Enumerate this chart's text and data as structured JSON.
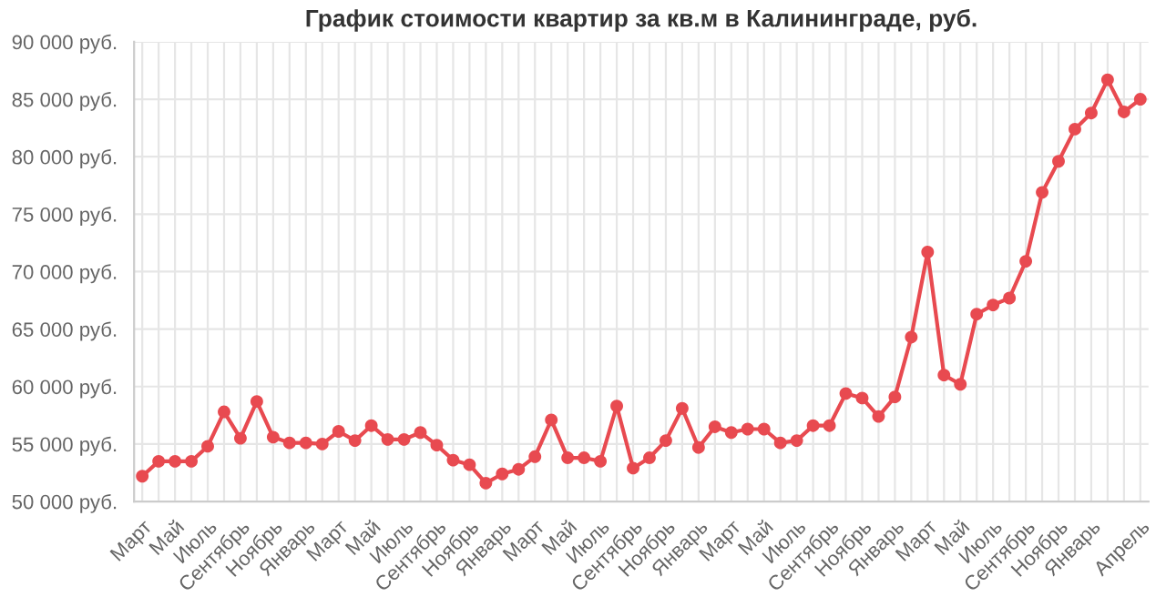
{
  "chart_data": {
    "type": "line",
    "title": "График стоимости квартир за кв.м в Калининграде, руб.",
    "categories": [
      "Март",
      null,
      "Май",
      null,
      "Июль",
      null,
      "Сентябрь",
      null,
      "Ноябрь",
      null,
      "Январь",
      null,
      "Март",
      null,
      "Май",
      null,
      "Июль",
      null,
      "Сентябрь",
      null,
      "Ноябрь",
      null,
      "Январь",
      null,
      "Март",
      null,
      "Май",
      null,
      "Июль",
      null,
      "Сентябрь",
      null,
      "Ноябрь",
      null,
      "Январь",
      null,
      "Март",
      null,
      "Май",
      null,
      "Июль",
      null,
      "Сентябрь",
      null,
      "Ноябрь",
      null,
      "Январь",
      null,
      "Март",
      null,
      "Май",
      null,
      "Июль",
      null,
      "Сентябрь",
      null,
      "Ноябрь",
      null,
      "Январь",
      null,
      null,
      "Апрель"
    ],
    "series": [
      {
        "color": "#e84a50",
        "values": [
          52200,
          53500,
          53500,
          53500,
          54800,
          57800,
          55500,
          58700,
          55600,
          55100,
          55100,
          55000,
          56100,
          55300,
          56600,
          55400,
          55400,
          56000,
          54900,
          53600,
          53200,
          51600,
          52400,
          52800,
          53900,
          57100,
          53800,
          53800,
          53500,
          58300,
          52900,
          53800,
          55300,
          58100,
          54700,
          56500,
          56000,
          56300,
          56300,
          55100,
          55300,
          56600,
          56600,
          59400,
          59000,
          57400,
          59100,
          64300,
          71700,
          61000,
          60200,
          66300,
          67100,
          67700,
          70900,
          76900,
          79600,
          82400,
          83800,
          86700,
          83900,
          85000
        ]
      }
    ],
    "ylim": [
      50000,
      90000
    ],
    "yticks": [
      {
        "value": 50000,
        "label": "50 000 руб."
      },
      {
        "value": 55000,
        "label": "55 000 руб."
      },
      {
        "value": 60000,
        "label": "60 000 руб."
      },
      {
        "value": 65000,
        "label": "65 000 руб."
      },
      {
        "value": 70000,
        "label": "70 000 руб."
      },
      {
        "value": 75000,
        "label": "75 000 руб."
      },
      {
        "value": 80000,
        "label": "80 000 руб."
      },
      {
        "value": 85000,
        "label": "85 000 руб."
      },
      {
        "value": 90000,
        "label": "90 000 руб."
      }
    ],
    "grid": true,
    "marker": "circle",
    "line_style": "solid",
    "legend": false
  }
}
